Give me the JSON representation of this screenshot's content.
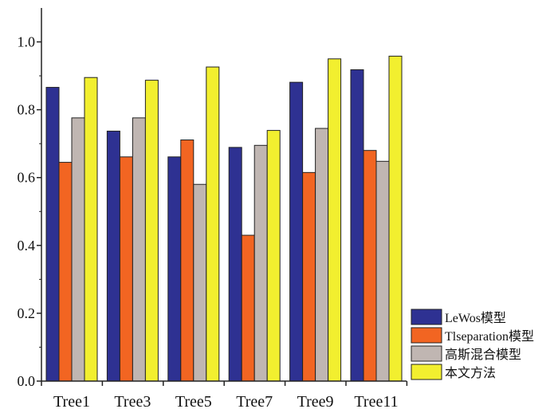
{
  "chart_data": {
    "type": "bar",
    "categories": [
      "Tree1",
      "Tree3",
      "Tree5",
      "Tree7",
      "Tree9",
      "Tree11"
    ],
    "series": [
      {
        "name": "LeWos模型",
        "color": "#2e3192",
        "values": [
          0.866,
          0.737,
          0.661,
          0.689,
          0.881,
          0.918
        ]
      },
      {
        "name": "Tlseparation模型",
        "color": "#f26522",
        "values": [
          0.645,
          0.661,
          0.711,
          0.43,
          0.615,
          0.68
        ]
      },
      {
        "name": "高斯混合模型",
        "color": "#c0b6b2",
        "values": [
          0.776,
          0.776,
          0.58,
          0.695,
          0.745,
          0.648
        ]
      },
      {
        "name": "本文方法",
        "color": "#f2ef2f",
        "values": [
          0.895,
          0.887,
          0.926,
          0.739,
          0.95,
          0.958
        ]
      }
    ],
    "ylim": [
      0,
      1.1
    ],
    "yticks": [
      "0.0",
      "0.2",
      "0.4",
      "0.6",
      "0.8",
      "1.0"
    ],
    "xlabel": "",
    "ylabel": "",
    "title": "",
    "legend_position": "bottom-right",
    "grid": false
  }
}
